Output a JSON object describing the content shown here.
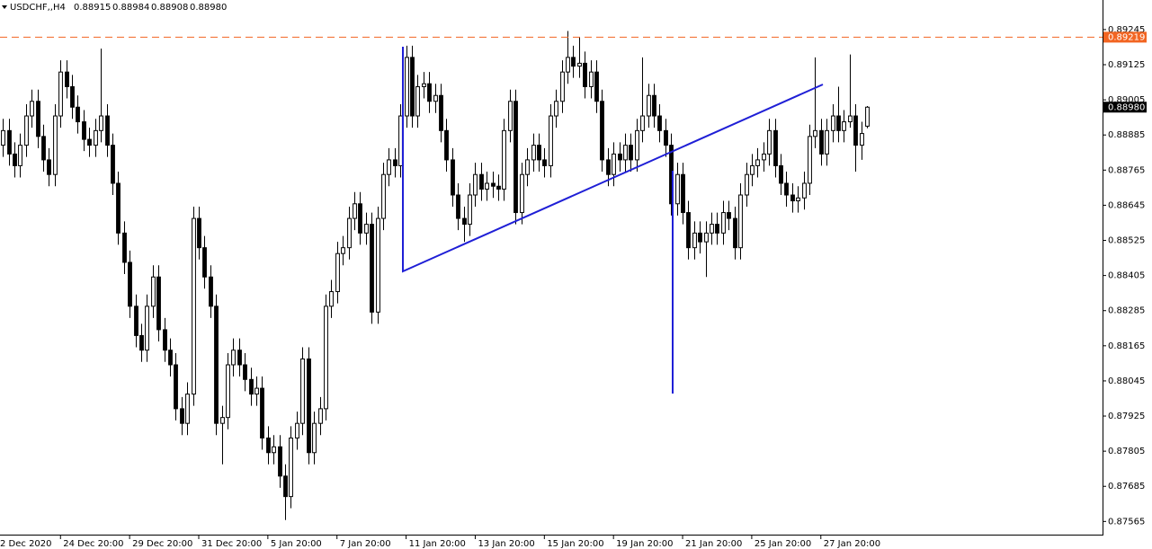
{
  "chart_data": {
    "type": "candlestick",
    "header": {
      "symbol": "USDCHF,,H4",
      "quotes": [
        "0.88915",
        "0.88984",
        "0.88908",
        "0.88980"
      ]
    },
    "ylim": [
      0.8752,
      0.89346
    ],
    "yticks": [
      0.89245,
      0.89125,
      0.89005,
      0.88885,
      0.88765,
      0.88645,
      0.88525,
      0.88405,
      0.88285,
      0.88165,
      0.88045,
      0.87925,
      0.87805,
      0.87685,
      0.87565
    ],
    "xlim": [
      -0.5,
      190.9
    ],
    "xticks": [
      {
        "value": -1,
        "label": "2 Dec 2020"
      },
      {
        "value": 10,
        "label": "24 Dec 20:00"
      },
      {
        "value": 22,
        "label": "29 Dec 20:00"
      },
      {
        "value": 34,
        "label": "31 Dec 20:00"
      },
      {
        "value": 46,
        "label": "5 Jan 20:00"
      },
      {
        "value": 58,
        "label": "7 Jan 20:00"
      },
      {
        "value": 70,
        "label": "11 Jan 20:00"
      },
      {
        "value": 82,
        "label": "13 Jan 20:00"
      },
      {
        "value": 94,
        "label": "15 Jan 20:00"
      },
      {
        "value": 106,
        "label": "19 Jan 20:00"
      },
      {
        "value": 118,
        "label": "21 Jan 20:00"
      },
      {
        "value": 130,
        "label": "25 Jan 20:00"
      },
      {
        "value": 142,
        "label": "27 Jan 20:00"
      }
    ],
    "alert_line": {
      "value": 0.89219,
      "color": "#f26522"
    },
    "last_price": {
      "value": 0.8898,
      "label": "0.88980"
    },
    "up_color": "#ffffff",
    "down_color": "#000000",
    "ohlc": [
      [
        0.8885,
        0.8894,
        0.8881,
        0.889
      ],
      [
        0.889,
        0.8894,
        0.8878,
        0.8882
      ],
      [
        0.8882,
        0.8886,
        0.8874,
        0.8878
      ],
      [
        0.8878,
        0.8889,
        0.8874,
        0.8885
      ],
      [
        0.8885,
        0.8899,
        0.8881,
        0.8895
      ],
      [
        0.8895,
        0.8904,
        0.8891,
        0.89
      ],
      [
        0.89,
        0.8904,
        0.8884,
        0.8888
      ],
      [
        0.8888,
        0.8892,
        0.8876,
        0.888
      ],
      [
        0.888,
        0.8884,
        0.8871,
        0.8875
      ],
      [
        0.8875,
        0.8899,
        0.8871,
        0.8895
      ],
      [
        0.8895,
        0.8914,
        0.8891,
        0.891
      ],
      [
        0.891,
        0.8914,
        0.8901,
        0.8905
      ],
      [
        0.8905,
        0.8909,
        0.8894,
        0.8898
      ],
      [
        0.8898,
        0.8902,
        0.8889,
        0.8893
      ],
      [
        0.8893,
        0.8897,
        0.8883,
        0.8887
      ],
      [
        0.8887,
        0.8891,
        0.8881,
        0.8885
      ],
      [
        0.8885,
        0.8894,
        0.8881,
        0.889
      ],
      [
        0.889,
        0.8918,
        0.8886,
        0.8895
      ],
      [
        0.8895,
        0.8899,
        0.8881,
        0.8885
      ],
      [
        0.8885,
        0.8889,
        0.8868,
        0.8872
      ],
      [
        0.8872,
        0.8876,
        0.8851,
        0.8855
      ],
      [
        0.8855,
        0.8859,
        0.8841,
        0.8845
      ],
      [
        0.8845,
        0.8849,
        0.8826,
        0.883
      ],
      [
        0.883,
        0.8834,
        0.8816,
        0.882
      ],
      [
        0.882,
        0.8824,
        0.8811,
        0.8815
      ],
      [
        0.8815,
        0.8834,
        0.8811,
        0.883
      ],
      [
        0.883,
        0.8844,
        0.8826,
        0.884
      ],
      [
        0.884,
        0.8844,
        0.8818,
        0.8822
      ],
      [
        0.8822,
        0.8826,
        0.8811,
        0.8815
      ],
      [
        0.8815,
        0.8819,
        0.8806,
        0.881
      ],
      [
        0.881,
        0.8814,
        0.8791,
        0.8795
      ],
      [
        0.8795,
        0.8799,
        0.8786,
        0.879
      ],
      [
        0.879,
        0.8804,
        0.8786,
        0.88
      ],
      [
        0.88,
        0.8864,
        0.8796,
        0.886
      ],
      [
        0.886,
        0.8864,
        0.8846,
        0.885
      ],
      [
        0.885,
        0.8854,
        0.8836,
        0.884
      ],
      [
        0.884,
        0.8844,
        0.8826,
        0.883
      ],
      [
        0.883,
        0.8834,
        0.8786,
        0.879
      ],
      [
        0.879,
        0.8796,
        0.8776,
        0.8792
      ],
      [
        0.8792,
        0.8814,
        0.8788,
        0.881
      ],
      [
        0.881,
        0.8819,
        0.8806,
        0.8815
      ],
      [
        0.8815,
        0.8819,
        0.8806,
        0.881
      ],
      [
        0.881,
        0.8814,
        0.8801,
        0.8805
      ],
      [
        0.8805,
        0.8809,
        0.8796,
        0.88
      ],
      [
        0.88,
        0.8806,
        0.8796,
        0.8802
      ],
      [
        0.8802,
        0.8806,
        0.8781,
        0.8785
      ],
      [
        0.8785,
        0.8789,
        0.8776,
        0.878
      ],
      [
        0.878,
        0.8786,
        0.8776,
        0.8782
      ],
      [
        0.8782,
        0.8786,
        0.8768,
        0.8772
      ],
      [
        0.8772,
        0.8776,
        0.8757,
        0.8765
      ],
      [
        0.8765,
        0.8789,
        0.8761,
        0.8785
      ],
      [
        0.8785,
        0.8794,
        0.8781,
        0.879
      ],
      [
        0.879,
        0.8816,
        0.8786,
        0.8812
      ],
      [
        0.8812,
        0.8816,
        0.8776,
        0.878
      ],
      [
        0.878,
        0.8794,
        0.8776,
        0.879
      ],
      [
        0.879,
        0.8799,
        0.8786,
        0.8795
      ],
      [
        0.8795,
        0.8834,
        0.8791,
        0.883
      ],
      [
        0.883,
        0.8839,
        0.8826,
        0.8835
      ],
      [
        0.8835,
        0.8852,
        0.8831,
        0.8848
      ],
      [
        0.8848,
        0.8854,
        0.8844,
        0.885
      ],
      [
        0.885,
        0.8864,
        0.8846,
        0.886
      ],
      [
        0.886,
        0.8869,
        0.8856,
        0.8865
      ],
      [
        0.8865,
        0.8869,
        0.8851,
        0.8855
      ],
      [
        0.8855,
        0.8862,
        0.8851,
        0.8858
      ],
      [
        0.8858,
        0.8862,
        0.8824,
        0.8828
      ],
      [
        0.8828,
        0.8864,
        0.8824,
        0.886
      ],
      [
        0.886,
        0.8879,
        0.8856,
        0.8875
      ],
      [
        0.8875,
        0.8884,
        0.8871,
        0.888
      ],
      [
        0.888,
        0.8884,
        0.8874,
        0.8878
      ],
      [
        0.8878,
        0.8899,
        0.8874,
        0.8895
      ],
      [
        0.8895,
        0.8919,
        0.8891,
        0.8915
      ],
      [
        0.8915,
        0.8919,
        0.8891,
        0.8895
      ],
      [
        0.8895,
        0.8909,
        0.8891,
        0.8905
      ],
      [
        0.8905,
        0.891,
        0.8901,
        0.8906
      ],
      [
        0.8906,
        0.891,
        0.8896,
        0.89
      ],
      [
        0.89,
        0.8906,
        0.8896,
        0.8902
      ],
      [
        0.8902,
        0.8906,
        0.8886,
        0.889
      ],
      [
        0.889,
        0.8894,
        0.8876,
        0.888
      ],
      [
        0.888,
        0.8884,
        0.8864,
        0.8868
      ],
      [
        0.8868,
        0.8872,
        0.8856,
        0.886
      ],
      [
        0.886,
        0.8864,
        0.8852,
        0.8858
      ],
      [
        0.8858,
        0.8872,
        0.8854,
        0.8868
      ],
      [
        0.8868,
        0.8879,
        0.8864,
        0.8875
      ],
      [
        0.8875,
        0.8879,
        0.8866,
        0.887
      ],
      [
        0.887,
        0.8876,
        0.8866,
        0.8872
      ],
      [
        0.8872,
        0.8876,
        0.8867,
        0.8871
      ],
      [
        0.8871,
        0.8875,
        0.8866,
        0.887
      ],
      [
        0.887,
        0.8894,
        0.8866,
        0.889
      ],
      [
        0.889,
        0.8904,
        0.8886,
        0.89
      ],
      [
        0.89,
        0.8904,
        0.8858,
        0.8862
      ],
      [
        0.8862,
        0.8879,
        0.8858,
        0.8875
      ],
      [
        0.8875,
        0.8884,
        0.8871,
        0.888
      ],
      [
        0.888,
        0.8889,
        0.8876,
        0.8885
      ],
      [
        0.8885,
        0.8889,
        0.8876,
        0.888
      ],
      [
        0.888,
        0.8884,
        0.8874,
        0.8878
      ],
      [
        0.8878,
        0.8899,
        0.8874,
        0.8895
      ],
      [
        0.8895,
        0.8904,
        0.8891,
        0.89
      ],
      [
        0.89,
        0.8914,
        0.8896,
        0.891
      ],
      [
        0.891,
        0.8924,
        0.8906,
        0.8915
      ],
      [
        0.8915,
        0.8919,
        0.8908,
        0.8912
      ],
      [
        0.8912,
        0.8922,
        0.8908,
        0.8913
      ],
      [
        0.8913,
        0.8917,
        0.8901,
        0.8905
      ],
      [
        0.8905,
        0.8914,
        0.8901,
        0.891
      ],
      [
        0.891,
        0.8914,
        0.8896,
        0.89
      ],
      [
        0.89,
        0.8904,
        0.8876,
        0.888
      ],
      [
        0.888,
        0.8884,
        0.8871,
        0.8875
      ],
      [
        0.8875,
        0.8886,
        0.8871,
        0.8882
      ],
      [
        0.8882,
        0.8886,
        0.8876,
        0.888
      ],
      [
        0.888,
        0.8889,
        0.8876,
        0.8885
      ],
      [
        0.8885,
        0.8889,
        0.8876,
        0.888
      ],
      [
        0.888,
        0.8894,
        0.8876,
        0.889
      ],
      [
        0.889,
        0.8915,
        0.8886,
        0.8895
      ],
      [
        0.8895,
        0.8906,
        0.8891,
        0.8902
      ],
      [
        0.8902,
        0.8906,
        0.8891,
        0.8895
      ],
      [
        0.8895,
        0.8899,
        0.8886,
        0.889
      ],
      [
        0.889,
        0.8894,
        0.8881,
        0.8885
      ],
      [
        0.8885,
        0.8889,
        0.8861,
        0.8865
      ],
      [
        0.8865,
        0.8879,
        0.8861,
        0.8875
      ],
      [
        0.8875,
        0.8879,
        0.8858,
        0.8862
      ],
      [
        0.8862,
        0.8866,
        0.8846,
        0.885
      ],
      [
        0.885,
        0.8859,
        0.8846,
        0.8855
      ],
      [
        0.8855,
        0.8859,
        0.8848,
        0.8852
      ],
      [
        0.8852,
        0.8859,
        0.884,
        0.8855
      ],
      [
        0.8855,
        0.8862,
        0.8851,
        0.8858
      ],
      [
        0.8858,
        0.8862,
        0.8851,
        0.8855
      ],
      [
        0.8855,
        0.8866,
        0.8851,
        0.8862
      ],
      [
        0.8862,
        0.8866,
        0.8856,
        0.886
      ],
      [
        0.886,
        0.8864,
        0.8846,
        0.885
      ],
      [
        0.885,
        0.8872,
        0.8846,
        0.8868
      ],
      [
        0.8868,
        0.8879,
        0.8864,
        0.8875
      ],
      [
        0.8875,
        0.8882,
        0.8871,
        0.8878
      ],
      [
        0.8878,
        0.8884,
        0.8874,
        0.888
      ],
      [
        0.888,
        0.8886,
        0.8876,
        0.8882
      ],
      [
        0.8882,
        0.8894,
        0.8878,
        0.889
      ],
      [
        0.889,
        0.8894,
        0.8874,
        0.8878
      ],
      [
        0.8878,
        0.8882,
        0.8868,
        0.8872
      ],
      [
        0.8872,
        0.8876,
        0.8864,
        0.8868
      ],
      [
        0.8868,
        0.8872,
        0.8862,
        0.8866
      ],
      [
        0.8866,
        0.8871,
        0.8862,
        0.8867
      ],
      [
        0.8867,
        0.8876,
        0.8863,
        0.8872
      ],
      [
        0.8872,
        0.8892,
        0.8868,
        0.8888
      ],
      [
        0.8888,
        0.8915,
        0.8884,
        0.889
      ],
      [
        0.889,
        0.8894,
        0.8878,
        0.8882
      ],
      [
        0.8882,
        0.8894,
        0.8878,
        0.889
      ],
      [
        0.889,
        0.8899,
        0.8886,
        0.8895
      ],
      [
        0.8895,
        0.8905,
        0.8886,
        0.889
      ],
      [
        0.889,
        0.8897,
        0.8886,
        0.8893
      ],
      [
        0.8893,
        0.8916,
        0.8891,
        0.8895
      ],
      [
        0.8895,
        0.8899,
        0.8876,
        0.8885
      ],
      [
        0.8885,
        0.8893,
        0.888,
        0.8889
      ],
      [
        0.88915,
        0.88984,
        0.88908,
        0.8898
      ]
    ]
  }
}
